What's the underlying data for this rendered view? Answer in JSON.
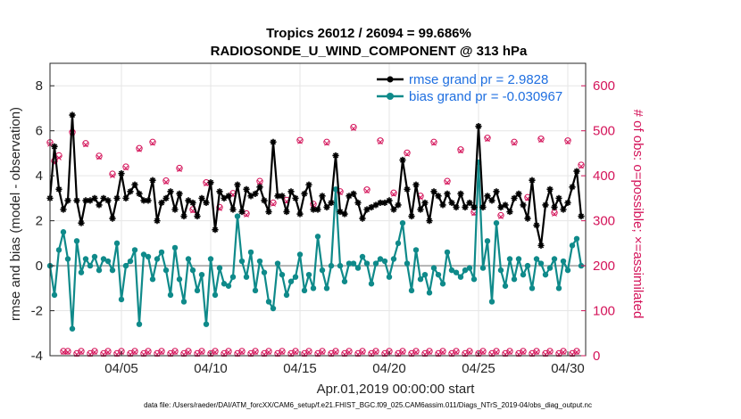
{
  "chart_data": {
    "type": "line",
    "title_line1": "Tropics 26012 / 26094 = 99.686%",
    "title_line2": "RADIOSONDE_U_WIND_COMPONENT @ 313 hPa",
    "ylabel": "rmse and bias (model - observation)",
    "ylabel_right": "# of obs: o=possible; ×=assimilated",
    "xlabel": "Apr.01,2019 00:00:00 start",
    "footer": "data file: /Users/raeder/DAI/ATM_forcXX/CAM6_setup/f.e21.FHIST_BGC.f09_025.CAM6assim.011/Diags_NTrS_2019-04/obs_diag_output.nc",
    "x_ticks": [
      {
        "x": 5,
        "label": "04/05"
      },
      {
        "x": 10,
        "label": "04/10"
      },
      {
        "x": 15,
        "label": "04/15"
      },
      {
        "x": 20,
        "label": "04/20"
      },
      {
        "x": 25,
        "label": "04/25"
      },
      {
        "x": 30,
        "label": "04/30"
      }
    ],
    "xlim": [
      1,
      31
    ],
    "ylim": [
      -4,
      9
    ],
    "yticks": [
      -4,
      -2,
      0,
      2,
      4,
      6,
      8
    ],
    "ylim_right": [
      0,
      650
    ],
    "yticks_right": [
      0,
      100,
      200,
      300,
      400,
      500,
      600
    ],
    "x": [
      1.0,
      1.25,
      1.5,
      1.75,
      2.0,
      2.25,
      2.5,
      2.75,
      3.0,
      3.25,
      3.5,
      3.75,
      4.0,
      4.25,
      4.5,
      4.75,
      5.0,
      5.25,
      5.5,
      5.75,
      6.0,
      6.25,
      6.5,
      6.75,
      7.0,
      7.25,
      7.5,
      7.75,
      8.0,
      8.25,
      8.5,
      8.75,
      9.0,
      9.25,
      9.5,
      9.75,
      10.0,
      10.25,
      10.5,
      10.75,
      11.0,
      11.25,
      11.5,
      11.75,
      12.0,
      12.25,
      12.5,
      12.75,
      13.0,
      13.25,
      13.5,
      13.75,
      14.0,
      14.25,
      14.5,
      14.75,
      15.0,
      15.25,
      15.5,
      15.75,
      16.0,
      16.25,
      16.5,
      16.75,
      17.0,
      17.25,
      17.5,
      17.75,
      18.0,
      18.25,
      18.5,
      18.75,
      19.0,
      19.25,
      19.5,
      19.75,
      20.0,
      20.25,
      20.5,
      20.75,
      21.0,
      21.25,
      21.5,
      21.75,
      22.0,
      22.25,
      22.5,
      22.75,
      23.0,
      23.25,
      23.5,
      23.75,
      24.0,
      24.25,
      24.5,
      24.75,
      25.0,
      25.25,
      25.5,
      25.75,
      26.0,
      26.25,
      26.5,
      26.75,
      27.0,
      27.25,
      27.5,
      27.75,
      28.0,
      28.25,
      28.5,
      28.75,
      29.0,
      29.25,
      29.5,
      29.75,
      30.0,
      30.25,
      30.5,
      30.75
    ],
    "series": [
      {
        "name": "rmse grand pr = 2.9828",
        "color": "#000000",
        "marker": "asterisk",
        "values": [
          3.0,
          5.3,
          3.4,
          2.5,
          2.9,
          6.7,
          2.9,
          1.9,
          2.9,
          2.9,
          3.0,
          2.7,
          3.0,
          2.9,
          2.1,
          3.0,
          4.1,
          3.0,
          3.3,
          3.6,
          3.2,
          2.9,
          2.9,
          3.8,
          2.0,
          2.8,
          3.0,
          3.3,
          2.5,
          3.2,
          2.2,
          2.9,
          2.8,
          2.2,
          3.0,
          2.8,
          3.7,
          1.6,
          3.3,
          3.0,
          3.1,
          2.5,
          3.6,
          2.4,
          3.4,
          3.1,
          3.2,
          3.5,
          2.9,
          2.4,
          5.5,
          3.1,
          3.1,
          2.4,
          3.3,
          3.0,
          2.3,
          3.2,
          3.6,
          2.5,
          2.5,
          3.1,
          2.6,
          2.8,
          4.9,
          2.4,
          2.3,
          3.1,
          3.2,
          2.8,
          2.1,
          2.5,
          2.6,
          2.7,
          2.8,
          2.8,
          2.9,
          2.5,
          2.7,
          4.7,
          3.4,
          2.2,
          3.6,
          2.5,
          2.8,
          2.0,
          3.3,
          3.1,
          2.7,
          3.2,
          2.8,
          2.6,
          3.2,
          2.6,
          2.8,
          2.6,
          6.2,
          2.6,
          3.1,
          2.9,
          3.3,
          2.6,
          2.7,
          2.4,
          3.0,
          3.2,
          2.7,
          2.1,
          3.8,
          1.8,
          0.9,
          2.7,
          3.4,
          2.6,
          3.0,
          2.5,
          2.8,
          3.5,
          4.2,
          2.2
        ],
        "legend_label": "rmse grand pr = 2.9828"
      },
      {
        "name": "bias grand pr = -0.030967",
        "color": "#0f8a8a",
        "marker": "circle",
        "values": [
          0.0,
          -1.3,
          0.7,
          1.5,
          0.3,
          -2.8,
          1.1,
          -0.3,
          0.3,
          0.0,
          0.4,
          -0.2,
          0.3,
          0.2,
          -0.2,
          1.0,
          -1.5,
          0.0,
          0.2,
          0.7,
          -2.6,
          0.5,
          0.4,
          -0.6,
          0.3,
          0.6,
          -0.2,
          -1.3,
          0.8,
          -0.6,
          -1.6,
          0.3,
          -0.2,
          -1.1,
          -0.4,
          -2.6,
          0.3,
          -1.3,
          -0.1,
          -0.8,
          -0.9,
          -0.5,
          2.2,
          0.2,
          -0.5,
          0.6,
          -1.1,
          0.2,
          -0.3,
          -1.6,
          -1.9,
          0.1,
          -0.4,
          -1.3,
          -0.7,
          -0.5,
          0.5,
          -1.1,
          -0.4,
          -1.0,
          1.3,
          -0.2,
          -1.0,
          0.0,
          3.4,
          0.0,
          -0.7,
          0.1,
          0.1,
          -0.1,
          0.4,
          0.1,
          -0.8,
          0.1,
          0.3,
          0.2,
          -0.5,
          0.3,
          1.0,
          1.9,
          0.1,
          -1.1,
          0.7,
          -0.6,
          -0.4,
          -1.2,
          -0.1,
          -0.4,
          -0.8,
          0.6,
          -0.2,
          -0.3,
          -0.5,
          -0.2,
          -0.1,
          -0.6,
          4.6,
          -0.1,
          1.1,
          -1.6,
          1.9,
          -0.2,
          -0.9,
          0.3,
          -0.6,
          0.3,
          -0.4,
          0.0,
          -1.0,
          0.3,
          0.1,
          -0.4,
          -0.1,
          0.3,
          -1.0,
          0.2,
          -0.2,
          0.9,
          1.2,
          0.0
        ],
        "legend_label": "bias grand pr = -0.030967"
      }
    ],
    "obs_count": {
      "axis": "right",
      "color": "#d4145a",
      "possible": [
        474,
        433,
        445,
        10,
        10,
        497,
        5,
        10,
        472,
        5,
        10,
        444,
        5,
        10,
        404,
        5,
        10,
        420,
        5,
        10,
        461,
        5,
        10,
        475,
        5,
        10,
        389,
        5,
        10,
        417,
        5,
        10,
        325,
        5,
        10,
        385,
        5,
        10,
        330,
        5,
        10,
        361,
        5,
        10,
        316,
        5,
        10,
        388,
        5,
        10,
        340,
        5,
        10,
        346,
        5,
        10,
        479,
        5,
        10,
        337,
        5,
        10,
        475,
        5,
        10,
        365,
        5,
        10,
        508,
        5,
        10,
        369,
        5,
        10,
        478,
        5,
        10,
        362,
        5,
        10,
        451,
        5,
        10,
        355,
        5,
        10,
        475,
        5,
        10,
        388,
        5,
        10,
        458,
        5,
        10,
        319,
        5,
        10,
        484,
        5,
        10,
        312,
        5,
        10,
        475,
        5,
        10,
        352,
        5,
        10,
        482,
        5,
        10,
        318,
        5,
        10,
        478,
        5,
        10,
        424
      ],
      "assimilated": [
        470,
        430,
        440,
        8,
        8,
        495,
        3,
        8,
        469,
        3,
        8,
        441,
        3,
        8,
        400,
        3,
        8,
        417,
        3,
        8,
        458,
        3,
        8,
        472,
        3,
        8,
        386,
        3,
        8,
        414,
        3,
        8,
        322,
        3,
        8,
        382,
        3,
        8,
        327,
        3,
        8,
        358,
        3,
        8,
        313,
        3,
        8,
        385,
        3,
        8,
        337,
        3,
        8,
        343,
        3,
        8,
        476,
        3,
        8,
        334,
        3,
        8,
        472,
        3,
        8,
        362,
        3,
        8,
        505,
        3,
        8,
        366,
        3,
        8,
        475,
        3,
        8,
        359,
        3,
        8,
        448,
        3,
        8,
        352,
        3,
        8,
        472,
        3,
        8,
        385,
        3,
        8,
        455,
        3,
        8,
        316,
        3,
        8,
        481,
        3,
        8,
        309,
        3,
        8,
        472,
        3,
        8,
        349,
        3,
        8,
        479,
        3,
        8,
        315,
        3,
        8,
        475,
        3,
        8,
        421
      ]
    },
    "zero_line": 0,
    "legend": "top-right",
    "grid": true
  }
}
